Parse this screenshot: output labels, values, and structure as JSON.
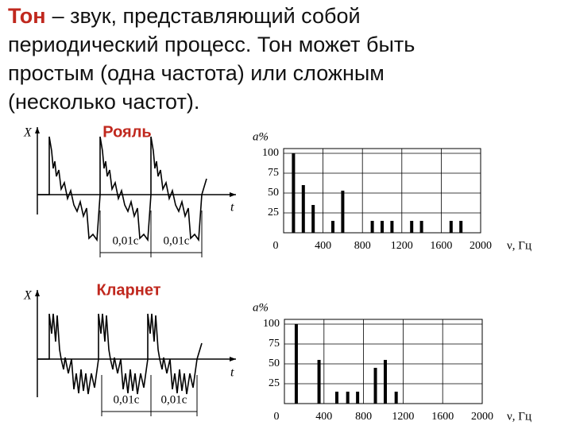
{
  "intro": {
    "term": "Тон",
    "lines": [
      "– звук, представляющий собой",
      "периодический процесс. Тон может быть",
      "простым (одна частота) или сложным",
      "(несколько частот)."
    ]
  },
  "waveforms": [
    {
      "title": "Рояль",
      "y_label": "X",
      "x_label": "t",
      "period_labels": [
        "0,01с",
        "0,01с"
      ]
    },
    {
      "title": "Кларнет",
      "y_label": "X",
      "x_label": "t",
      "period_labels": [
        "0,01с",
        "0,01с"
      ]
    }
  ],
  "chart_data": [
    {
      "type": "bar",
      "y_label": "a%",
      "x_label": "ν, Гц",
      "x": [
        100,
        200,
        300,
        500,
        600,
        900,
        1000,
        1100,
        1300,
        1400,
        1700,
        1800
      ],
      "values": [
        100,
        60,
        35,
        15,
        53,
        15,
        15,
        15,
        15,
        15,
        15,
        15
      ],
      "color": "#000000",
      "xlim": [
        0,
        2000
      ],
      "xticks": [
        0,
        400,
        800,
        1200,
        1600,
        2000
      ],
      "ylim": [
        0,
        100
      ],
      "yticks": [
        25,
        50,
        75,
        100
      ],
      "grid": true
    },
    {
      "type": "bar",
      "y_label": "a%",
      "x_label": "ν, Гц",
      "x": [
        120,
        350,
        530,
        640,
        740,
        920,
        1020,
        1130
      ],
      "values": [
        100,
        55,
        15,
        15,
        15,
        45,
        55,
        15
      ],
      "color": "#000000",
      "xlim": [
        0,
        2000
      ],
      "xticks": [
        0,
        400,
        800,
        1200,
        1600,
        2000
      ],
      "ylim": [
        0,
        100
      ],
      "yticks": [
        25,
        50,
        75,
        100
      ],
      "grid": true
    }
  ]
}
